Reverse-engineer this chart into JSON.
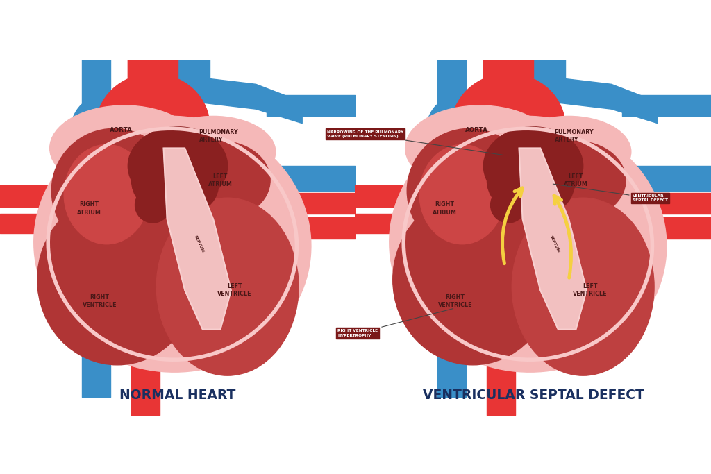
{
  "left_bg": "#c5e8f0",
  "right_bg": "#f2e0d0",
  "blue": "#3a8fc8",
  "red_bright": "#e83535",
  "pink_outer": "#f5b8b8",
  "pink_inner": "#f0c8c8",
  "dark_chamber": "#b03535",
  "darker_chamber": "#8a2020",
  "septum_pink": "#f2c0c0",
  "label_dark": "#4a1818",
  "title_color": "#1a3060",
  "box_bg": "#7a1818",
  "box_text": "#ffffff",
  "yellow": "#f5d040",
  "left_title": "NORMAL HEART",
  "right_title": "VENTRICULAR SEPTAL DEFECT",
  "lc_aorta": "AORTA",
  "lc_pulm": "PULMONARY\nARTERY",
  "lc_ra": "RIGHT\nATRIUM",
  "lc_la": "LEFT\nATRIUM",
  "lc_rv": "RIGHT\nVENTRICLE",
  "lc_lv": "LEFT\nVENTRICLE",
  "lc_sep": "SEPTUM",
  "lc_narrowing": "NARROWING OF THE PULMONARY\nVALVE (PULMONARY STENOSIS)",
  "lc_vsd": "VENTRICULAR\nSEPTAL DEFECT",
  "lc_hyp": "RIGHT VENTRICLE\nHYPERTROPHY"
}
